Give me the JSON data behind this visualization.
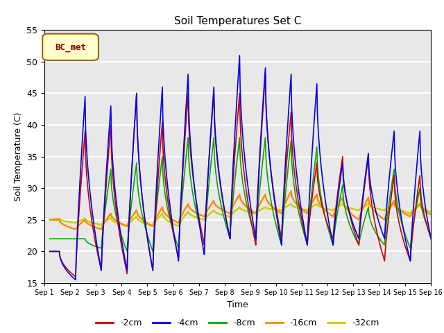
{
  "title": "Soil Temperatures Set C",
  "xlabel": "Time",
  "ylabel": "Soil Temperature (C)",
  "ylim": [
    15,
    55
  ],
  "xlim": [
    0,
    15
  ],
  "xtick_labels": [
    "Sep 1",
    "Sep 2",
    "Sep 3",
    "Sep 4",
    "Sep 5",
    "Sep 6",
    "Sep 7",
    "Sep 8",
    "Sep 9",
    "Sep 10",
    "Sep 11",
    "Sep 12",
    "Sep 13",
    "Sep 14",
    "Sep 15",
    "Sep 16"
  ],
  "colors": {
    "-2cm": "#cc0000",
    "-4cm": "#0000ee",
    "-8cm": "#00aa00",
    "-16cm": "#ff8800",
    "-32cm": "#cccc00"
  },
  "legend_label": "BC_met",
  "bg_color": "#e8e8e8",
  "grid_color": "white",
  "linewidth": 1.2
}
